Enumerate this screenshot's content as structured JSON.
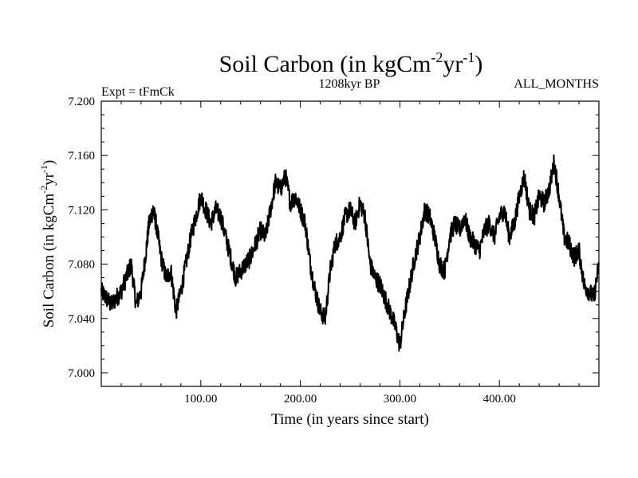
{
  "chart_data": {
    "type": "line",
    "title": {
      "base": "Soil Carbon (in kgCm",
      "sup1": "-2",
      "mid": "yr",
      "sup2": "-1",
      "tail": ")"
    },
    "subtitle_left": "Expt = tFmCk",
    "subtitle_center": "1208kyr BP",
    "subtitle_right": "ALL_MONTHS",
    "xlabel": "Time (in years since start)",
    "ylabel": {
      "base": "Soil Carbon (in kgCm",
      "sup1": "-2",
      "mid": "yr",
      "sup2": "-1",
      "tail": ")"
    },
    "xlim": [
      0,
      500
    ],
    "ylim": [
      6.99,
      7.2
    ],
    "x_ticks": [
      100,
      200,
      300,
      400
    ],
    "x_tick_labels": [
      "100.00",
      "200.00",
      "300.00",
      "400.00"
    ],
    "y_ticks": [
      7.0,
      7.04,
      7.08,
      7.12,
      7.16,
      7.2
    ],
    "y_tick_labels": [
      "7.000",
      "7.040",
      "7.080",
      "7.120",
      "7.160",
      "7.200"
    ],
    "line_color": "#000000",
    "series": [
      {
        "name": "Soil Carbon",
        "x": [
          0,
          5,
          10,
          15,
          20,
          25,
          30,
          35,
          40,
          45,
          48,
          52,
          55,
          60,
          65,
          70,
          75,
          80,
          85,
          90,
          95,
          100,
          105,
          110,
          115,
          120,
          125,
          130,
          135,
          140,
          145,
          150,
          155,
          160,
          165,
          170,
          175,
          180,
          185,
          190,
          195,
          200,
          205,
          210,
          215,
          220,
          225,
          230,
          235,
          240,
          245,
          250,
          255,
          260,
          265,
          270,
          275,
          280,
          285,
          290,
          295,
          300,
          305,
          310,
          315,
          320,
          325,
          330,
          335,
          340,
          345,
          350,
          355,
          360,
          365,
          370,
          375,
          380,
          385,
          390,
          395,
          400,
          405,
          410,
          415,
          420,
          425,
          430,
          435,
          440,
          445,
          450,
          455,
          460,
          465,
          470,
          475,
          480,
          485,
          490,
          495,
          500
        ],
        "y": [
          7.06,
          7.055,
          7.05,
          7.055,
          7.06,
          7.07,
          7.08,
          7.05,
          7.06,
          7.09,
          7.11,
          7.12,
          7.11,
          7.085,
          7.07,
          7.075,
          7.045,
          7.06,
          7.08,
          7.1,
          7.115,
          7.13,
          7.12,
          7.11,
          7.12,
          7.115,
          7.1,
          7.085,
          7.07,
          7.075,
          7.08,
          7.085,
          7.095,
          7.105,
          7.1,
          7.12,
          7.14,
          7.135,
          7.145,
          7.125,
          7.13,
          7.12,
          7.11,
          7.08,
          7.06,
          7.045,
          7.04,
          7.075,
          7.095,
          7.1,
          7.115,
          7.12,
          7.11,
          7.125,
          7.115,
          7.08,
          7.07,
          7.065,
          7.055,
          7.045,
          7.035,
          7.02,
          7.045,
          7.065,
          7.085,
          7.1,
          7.12,
          7.115,
          7.1,
          7.08,
          7.075,
          7.1,
          7.11,
          7.105,
          7.115,
          7.1,
          7.095,
          7.09,
          7.105,
          7.11,
          7.1,
          7.115,
          7.12,
          7.1,
          7.11,
          7.13,
          7.145,
          7.12,
          7.115,
          7.13,
          7.125,
          7.135,
          7.155,
          7.13,
          7.1,
          7.095,
          7.085,
          7.09,
          7.065,
          7.06,
          7.055,
          7.08
        ]
      }
    ]
  }
}
